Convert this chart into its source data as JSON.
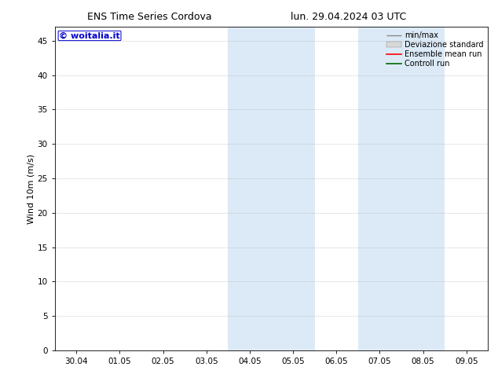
{
  "title_left": "ENS Time Series Cordova",
  "title_right": "lun. 29.04.2024 03 UTC",
  "ylabel": "Wind 10m (m/s)",
  "ylim": [
    0,
    47
  ],
  "yticks": [
    0,
    5,
    10,
    15,
    20,
    25,
    30,
    35,
    40,
    45
  ],
  "xtick_labels": [
    "30.04",
    "01.05",
    "02.05",
    "03.05",
    "04.05",
    "05.05",
    "06.05",
    "07.05",
    "08.05",
    "09.05"
  ],
  "xtick_positions": [
    0,
    1,
    2,
    3,
    4,
    5,
    6,
    7,
    8,
    9
  ],
  "xlim": [
    -0.5,
    9.5
  ],
  "shaded_bands": [
    {
      "x_start": 3.5,
      "x_end": 5.5
    },
    {
      "x_start": 6.5,
      "x_end": 8.5
    }
  ],
  "shaded_color": "#dceaf7",
  "legend_labels": [
    "min/max",
    "Deviazione standard",
    "Ensemble mean run",
    "Controll run"
  ],
  "watermark_text": "© woitalia.it",
  "watermark_color": "#0000cc",
  "background_color": "#ffffff",
  "title_fontsize": 9,
  "tick_label_fontsize": 7.5,
  "ylabel_fontsize": 8,
  "watermark_fontsize": 8,
  "legend_fontsize": 7,
  "grid_color": "#aaaaaa",
  "grid_alpha": 0.5,
  "grid_linewidth": 0.4
}
